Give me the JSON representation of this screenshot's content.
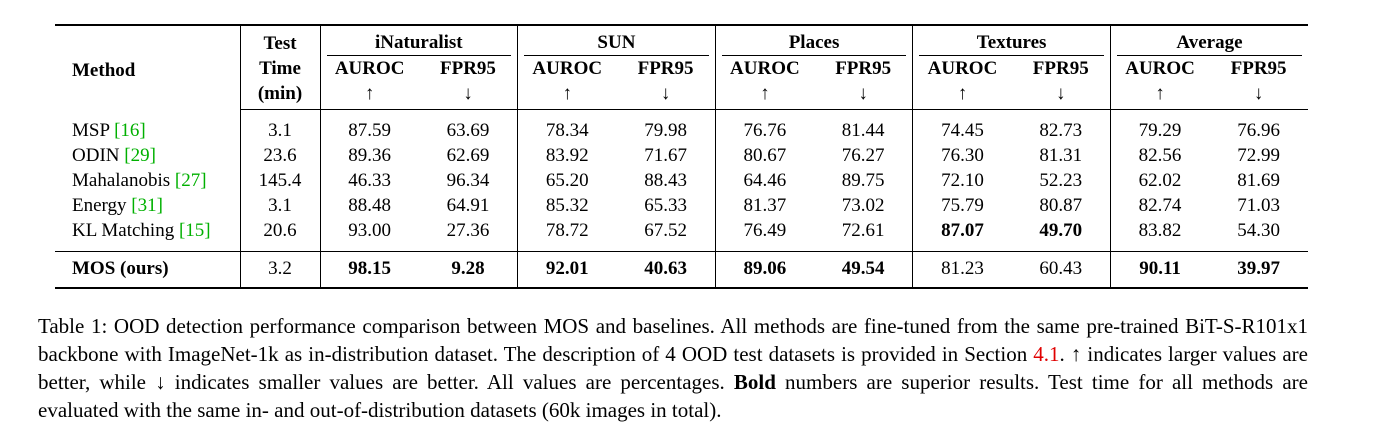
{
  "table": {
    "header": {
      "method": "Method",
      "test_time": [
        "Test",
        "Time",
        "(min)"
      ],
      "datasets": [
        "iNaturalist",
        "SUN",
        "Places",
        "Textures",
        "Average"
      ],
      "metrics": [
        "AUROC",
        "FPR95"
      ],
      "arrows": [
        "↑",
        "↓"
      ]
    },
    "rows": [
      {
        "method": "MSP",
        "ref": "[16]",
        "time": "3.1",
        "values": [
          "87.59",
          "63.69",
          "78.34",
          "79.98",
          "76.76",
          "81.44",
          "74.45",
          "82.73",
          "79.29",
          "76.96"
        ],
        "bold": []
      },
      {
        "method": "ODIN",
        "ref": "[29]",
        "time": "23.6",
        "values": [
          "89.36",
          "62.69",
          "83.92",
          "71.67",
          "80.67",
          "76.27",
          "76.30",
          "81.31",
          "82.56",
          "72.99"
        ],
        "bold": []
      },
      {
        "method": "Mahalanobis",
        "ref": "[27]",
        "time": "145.4",
        "values": [
          "46.33",
          "96.34",
          "65.20",
          "88.43",
          "64.46",
          "89.75",
          "72.10",
          "52.23",
          "62.02",
          "81.69"
        ],
        "bold": []
      },
      {
        "method": "Energy",
        "ref": "[31]",
        "time": "3.1",
        "values": [
          "88.48",
          "64.91",
          "85.32",
          "65.33",
          "81.37",
          "73.02",
          "75.79",
          "80.87",
          "82.74",
          "71.03"
        ],
        "bold": []
      },
      {
        "method": "KL Matching",
        "ref": "[15]",
        "time": "20.6",
        "values": [
          "93.00",
          "27.36",
          "78.72",
          "67.52",
          "76.49",
          "72.61",
          "87.07",
          "49.70",
          "83.82",
          "54.30"
        ],
        "bold": [
          6,
          7
        ]
      }
    ],
    "summary_row": {
      "method": "MOS (ours)",
      "time": "3.2",
      "values": [
        "98.15",
        "9.28",
        "92.01",
        "40.63",
        "89.06",
        "49.54",
        "81.23",
        "60.43",
        "90.11",
        "39.97"
      ],
      "bold": [
        0,
        1,
        2,
        3,
        4,
        5,
        8,
        9
      ]
    }
  },
  "caption": [
    {
      "text": "Table 1: OOD detection performance comparison between MOS and baselines. All methods are fine-tuned from the same pre-trained BiT-S-R101x1 backbone with ImageNet-1k as in-distribution dataset. The description of 4 OOD test datasets is provided in Section ",
      "style": "plain"
    },
    {
      "text": "4.1",
      "style": "link"
    },
    {
      "text": ". ↑ indicates larger values are better, while ↓ indicates smaller values are better. All values are percentages. ",
      "style": "plain"
    },
    {
      "text": "Bold",
      "style": "bold"
    },
    {
      "text": " numbers are superior results. Test time for all methods are evaluated with the same in- and out-of-distribution datasets (60k images in total).",
      "style": "plain"
    }
  ]
}
